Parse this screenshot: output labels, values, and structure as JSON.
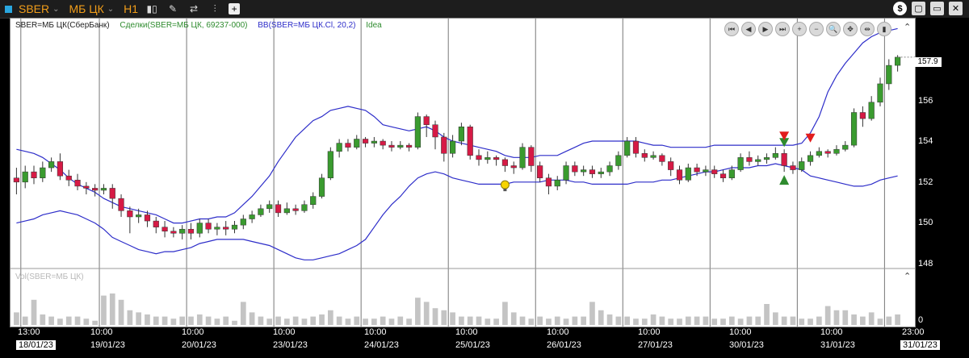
{
  "toolbar": {
    "symbol": "SBER",
    "board": "МБ ЦК",
    "timeframe": "H1",
    "right_buttons": [
      "$",
      "▢",
      "▭",
      "✕"
    ]
  },
  "legend": {
    "instrument": "SBER=МБ ЦК(СберБанк)",
    "trades": "Сделки(SBER=МБ ЦК, 69237-000)",
    "bb": "BB(SBER=МБ ЦК.Cl, 20,2)",
    "idea": "Idea",
    "colors": {
      "instrument": "#222222",
      "trades": "#2e8b2e",
      "bb": "#2d2dc9",
      "idea": "#2e8b2e"
    }
  },
  "nav_buttons": [
    "⏮",
    "◀",
    "▶",
    "⏭",
    "+",
    "−",
    "🔍",
    "✥",
    "⇹",
    "▮"
  ],
  "volume_label": "Vol(SBER=МБ ЦК)",
  "price_axis": {
    "ticks": [
      "157.9",
      "156",
      "154",
      "152",
      "150",
      "148"
    ],
    "last": "157.9"
  },
  "volume_axis": {
    "ticks": [
      "0"
    ]
  },
  "time_axis": {
    "times": [
      "13:00",
      "10:00",
      "10:00",
      "10:00",
      "10:00",
      "10:00",
      "10:00",
      "10:00",
      "10:00",
      "10:00",
      "23:00"
    ],
    "dates": [
      "18/01/23",
      "19/01/23",
      "20/01/23",
      "23/01/23",
      "24/01/23",
      "25/01/23",
      "26/01/23",
      "27/01/23",
      "30/01/23",
      "31/01/23",
      "31/01/23"
    ]
  },
  "chart_data": {
    "type": "candlestick",
    "ylim": [
      147.5,
      159
    ],
    "bar_count": 102,
    "ohlc": [
      [
        152,
        151.8,
        152.5,
        151.2
      ],
      [
        151.8,
        152.3,
        152.6,
        151.5
      ],
      [
        152.3,
        152.0,
        152.6,
        151.7
      ],
      [
        152.0,
        152.5,
        152.8,
        151.8
      ],
      [
        152.5,
        152.8,
        153.0,
        152.3
      ],
      [
        152.8,
        152.1,
        153.2,
        151.9
      ],
      [
        152.1,
        151.9,
        152.4,
        151.6
      ],
      [
        151.9,
        151.6,
        152.2,
        151.4
      ],
      [
        151.6,
        151.5,
        151.8,
        151.2
      ],
      [
        151.5,
        151.4,
        151.7,
        151.1
      ],
      [
        151.4,
        151.5,
        151.7,
        151.2
      ],
      [
        151.5,
        151.0,
        151.7,
        150.5
      ],
      [
        151.0,
        150.4,
        151.2,
        150.1
      ],
      [
        150.4,
        150.1,
        150.6,
        149.3
      ],
      [
        150.1,
        150.2,
        150.5,
        149.8
      ],
      [
        150.2,
        149.9,
        150.4,
        149.6
      ],
      [
        149.9,
        149.6,
        150.1,
        149.3
      ],
      [
        149.6,
        149.4,
        149.9,
        149.1
      ],
      [
        149.4,
        149.3,
        149.6,
        149.1
      ],
      [
        149.3,
        149.5,
        149.7,
        149.0
      ],
      [
        149.5,
        149.3,
        149.8,
        149.0
      ],
      [
        149.3,
        149.8,
        150.0,
        149.1
      ],
      [
        149.8,
        149.5,
        150.0,
        149.3
      ],
      [
        149.5,
        149.6,
        149.8,
        149.2
      ],
      [
        149.6,
        149.5,
        149.9,
        149.2
      ],
      [
        149.5,
        149.7,
        149.9,
        149.3
      ],
      [
        149.7,
        150.0,
        150.2,
        149.5
      ],
      [
        150.0,
        150.2,
        150.4,
        149.8
      ],
      [
        150.2,
        150.5,
        150.7,
        150.1
      ],
      [
        150.5,
        150.7,
        150.9,
        150.3
      ],
      [
        150.7,
        150.3,
        150.9,
        150.1
      ],
      [
        150.3,
        150.5,
        150.8,
        150.2
      ],
      [
        150.5,
        150.4,
        150.7,
        150.2
      ],
      [
        150.4,
        150.7,
        150.9,
        150.3
      ],
      [
        150.7,
        151.1,
        151.3,
        150.5
      ],
      [
        151.1,
        152.0,
        152.2,
        151.0
      ],
      [
        152.0,
        153.3,
        153.5,
        151.9
      ],
      [
        153.3,
        153.7,
        153.9,
        153.0
      ],
      [
        153.7,
        153.5,
        153.9,
        153.3
      ],
      [
        153.5,
        153.9,
        154.1,
        153.4
      ],
      [
        153.9,
        153.7,
        154.0,
        153.5
      ],
      [
        153.7,
        153.8,
        154.0,
        153.5
      ],
      [
        153.8,
        153.6,
        153.9,
        153.4
      ],
      [
        153.6,
        153.5,
        153.8,
        153.3
      ],
      [
        153.5,
        153.6,
        153.8,
        153.4
      ],
      [
        153.6,
        153.5,
        153.7,
        153.3
      ],
      [
        153.5,
        155.0,
        155.2,
        153.4
      ],
      [
        155.0,
        154.6,
        155.1,
        154.0
      ],
      [
        154.6,
        154.0,
        154.8,
        153.4
      ],
      [
        154.0,
        153.2,
        154.2,
        152.8
      ],
      [
        153.2,
        153.8,
        154.1,
        153.0
      ],
      [
        153.8,
        154.5,
        154.7,
        153.6
      ],
      [
        154.5,
        153.1,
        154.6,
        152.9
      ],
      [
        153.1,
        152.9,
        153.4,
        152.6
      ],
      [
        152.9,
        153.0,
        153.3,
        152.7
      ],
      [
        153.0,
        152.9,
        153.1,
        152.6
      ],
      [
        152.9,
        152.6,
        153.0,
        152.3
      ],
      [
        152.6,
        152.5,
        152.8,
        152.2
      ],
      [
        152.5,
        153.5,
        153.7,
        152.4
      ],
      [
        153.5,
        152.6,
        153.6,
        152.3
      ],
      [
        152.6,
        152.0,
        152.8,
        151.8
      ],
      [
        152.0,
        151.6,
        152.2,
        151.2
      ],
      [
        151.6,
        151.9,
        152.1,
        151.4
      ],
      [
        151.9,
        152.6,
        152.8,
        151.7
      ],
      [
        152.6,
        152.3,
        152.8,
        152.1
      ],
      [
        152.3,
        152.4,
        152.6,
        152.1
      ],
      [
        152.4,
        152.2,
        152.6,
        152.0
      ],
      [
        152.2,
        152.3,
        152.5,
        152.0
      ],
      [
        152.3,
        152.6,
        152.8,
        152.1
      ],
      [
        152.6,
        153.1,
        153.3,
        152.4
      ],
      [
        153.1,
        153.8,
        154.0,
        153.0
      ],
      [
        153.8,
        153.2,
        154.0,
        153.0
      ],
      [
        153.2,
        153.0,
        153.4,
        152.8
      ],
      [
        153.0,
        153.1,
        153.3,
        152.9
      ],
      [
        153.1,
        152.8,
        153.2,
        152.6
      ],
      [
        152.8,
        152.4,
        153.0,
        152.1
      ],
      [
        152.4,
        151.9,
        152.6,
        151.7
      ],
      [
        151.9,
        152.5,
        152.7,
        151.8
      ],
      [
        152.5,
        152.3,
        152.7,
        152.1
      ],
      [
        152.3,
        152.4,
        152.6,
        152.1
      ],
      [
        152.4,
        152.2,
        152.6,
        152.0
      ],
      [
        152.2,
        152.0,
        152.4,
        151.8
      ],
      [
        152.0,
        152.4,
        152.6,
        151.9
      ],
      [
        152.4,
        153.0,
        153.2,
        152.3
      ],
      [
        153.0,
        152.8,
        153.3,
        152.6
      ],
      [
        152.8,
        152.9,
        153.1,
        152.6
      ],
      [
        152.9,
        153.0,
        153.2,
        152.7
      ],
      [
        153.0,
        153.2,
        153.5,
        152.9
      ],
      [
        153.2,
        152.6,
        153.4,
        152.3
      ],
      [
        152.6,
        152.4,
        152.8,
        152.2
      ],
      [
        152.4,
        152.8,
        153.0,
        152.3
      ],
      [
        152.8,
        153.1,
        153.3,
        152.6
      ],
      [
        153.1,
        153.3,
        153.5,
        153.0
      ],
      [
        153.3,
        153.2,
        153.4,
        153.0
      ],
      [
        153.2,
        153.4,
        153.6,
        153.1
      ],
      [
        153.4,
        153.6,
        153.8,
        153.3
      ],
      [
        153.6,
        155.2,
        155.4,
        153.5
      ],
      [
        155.2,
        154.9,
        155.5,
        154.5
      ],
      [
        154.9,
        155.7,
        156.0,
        154.8
      ],
      [
        155.7,
        156.6,
        156.9,
        155.5
      ],
      [
        156.6,
        157.5,
        157.8,
        156.3
      ],
      [
        157.5,
        157.9,
        158.0,
        157.2
      ]
    ],
    "bb_upper": [
      153.4,
      153.3,
      153.2,
      153.0,
      152.7,
      152.4,
      152.0,
      151.7,
      151.5,
      151.3,
      151.0,
      150.8,
      150.6,
      150.5,
      150.4,
      150.3,
      150.2,
      150.0,
      149.8,
      149.8,
      149.9,
      150.0,
      150.0,
      150.1,
      150.1,
      150.3,
      150.7,
      151.1,
      151.6,
      152.1,
      152.8,
      153.4,
      154.0,
      154.4,
      154.8,
      155.0,
      155.3,
      155.4,
      155.5,
      155.4,
      155.3,
      155.0,
      154.6,
      154.5,
      154.4,
      154.3,
      154.4,
      154.5,
      154.3,
      154.0,
      153.8,
      153.7,
      153.6,
      153.5,
      153.4,
      153.3,
      153.1,
      153.0,
      153.0,
      153.0,
      153.1,
      153.1,
      153.1,
      153.3,
      153.5,
      153.7,
      153.8,
      153.8,
      153.8,
      153.8,
      153.8,
      153.8,
      153.7,
      153.6,
      153.6,
      153.5,
      153.5,
      153.5,
      153.5,
      153.5,
      153.6,
      153.6,
      153.6,
      153.6,
      153.6,
      153.6,
      153.6,
      153.6,
      153.6,
      153.6,
      153.7,
      154.2,
      155.0,
      156.2,
      157.0,
      157.6,
      158.1,
      158.6,
      158.9,
      159.1,
      159.2,
      159.3
    ],
    "bb_lower": [
      149.8,
      149.9,
      150.0,
      150.2,
      150.3,
      150.4,
      150.3,
      150.2,
      150.0,
      149.8,
      149.5,
      149.1,
      148.9,
      148.7,
      148.5,
      148.4,
      148.3,
      148.4,
      148.4,
      148.5,
      148.6,
      148.8,
      148.9,
      149.0,
      149.0,
      149.0,
      149.0,
      148.9,
      148.8,
      148.7,
      148.5,
      148.3,
      148.1,
      148.0,
      148.0,
      148.1,
      148.2,
      148.3,
      148.5,
      148.7,
      149.0,
      149.6,
      150.2,
      150.7,
      151.1,
      151.6,
      152.0,
      152.2,
      152.3,
      152.2,
      152.0,
      151.9,
      151.8,
      151.7,
      151.7,
      151.7,
      151.7,
      151.8,
      151.8,
      151.8,
      151.8,
      151.9,
      151.9,
      151.9,
      151.8,
      151.8,
      151.7,
      151.7,
      151.7,
      151.7,
      151.7,
      151.8,
      151.8,
      151.8,
      151.9,
      151.9,
      152.0,
      152.1,
      152.2,
      152.3,
      152.3,
      152.4,
      152.5,
      152.5,
      152.5,
      152.6,
      152.6,
      152.7,
      152.6,
      152.5,
      152.4,
      152.1,
      152.0,
      151.9,
      151.8,
      151.7,
      151.6,
      151.6,
      151.7,
      151.9,
      152.0,
      152.1
    ],
    "volumes": [
      0.3,
      0.2,
      0.6,
      0.25,
      0.2,
      0.15,
      0.2,
      0.2,
      0.15,
      0.1,
      0.7,
      0.75,
      0.6,
      0.35,
      0.3,
      0.25,
      0.2,
      0.2,
      0.15,
      0.2,
      0.2,
      0.25,
      0.2,
      0.15,
      0.2,
      0.1,
      0.55,
      0.3,
      0.2,
      0.15,
      0.2,
      0.15,
      0.2,
      0.15,
      0.2,
      0.25,
      0.35,
      0.2,
      0.15,
      0.2,
      0.15,
      0.15,
      0.2,
      0.15,
      0.2,
      0.15,
      0.65,
      0.55,
      0.4,
      0.35,
      0.3,
      0.2,
      0.2,
      0.2,
      0.15,
      0.15,
      0.55,
      0.3,
      0.2,
      0.15,
      0.2,
      0.15,
      0.2,
      0.15,
      0.2,
      0.2,
      0.55,
      0.35,
      0.25,
      0.2,
      0.2,
      0.15,
      0.15,
      0.25,
      0.2,
      0.15,
      0.15,
      0.2,
      0.2,
      0.2,
      0.15,
      0.15,
      0.2,
      0.15,
      0.2,
      0.2,
      0.5,
      0.3,
      0.2,
      0.2,
      0.15,
      0.15,
      0.2,
      0.45,
      0.35,
      0.35,
      0.25,
      0.2,
      0.3,
      0.15,
      0.2,
      0.25
    ],
    "marker_buy_idx": 88,
    "marker_sell_idx": [
      88,
      91
    ],
    "idea_idx": 56
  }
}
